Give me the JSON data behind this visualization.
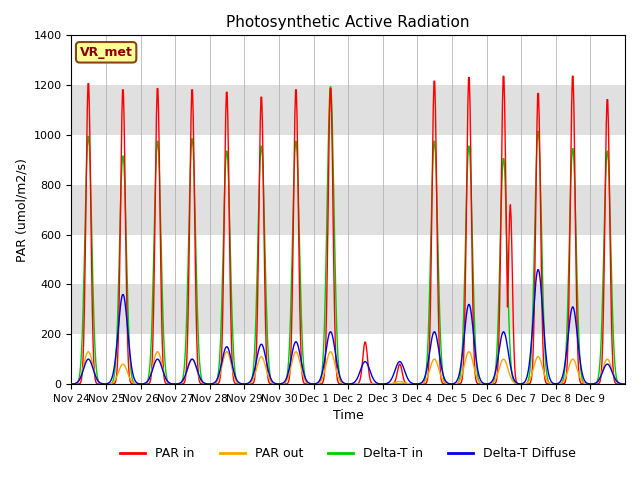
{
  "title": "Photosynthetic Active Radiation",
  "ylabel": "PAR (umol/m2/s)",
  "xlabel": "Time",
  "ylim": [
    0,
    1400
  ],
  "label_box": "VR_met",
  "xtick_labels": [
    "Nov 24",
    "Nov 25",
    "Nov 26",
    "Nov 27",
    "Nov 28",
    "Nov 29",
    "Nov 30",
    "Dec 1",
    "Dec 2",
    "Dec 3",
    "Dec 4",
    "Dec 5",
    "Dec 6",
    "Dec 7",
    "Dec 8",
    "Dec 9"
  ],
  "ytick_labels": [
    0,
    200,
    400,
    600,
    800,
    1000,
    1200,
    1400
  ],
  "colors": {
    "PAR_in": "#FF0000",
    "PAR_out": "#FFA500",
    "Delta_T_in": "#00CC00",
    "Delta_T_Diffuse": "#0000EE"
  },
  "bg_color": "#FFFFFF",
  "grid_band_color": "#E0E0E0",
  "n_days": 16,
  "spd": 48,
  "par_in_peaks": [
    1220,
    1195,
    1200,
    1195,
    1185,
    1165,
    1195,
    1200,
    170,
    80,
    1230,
    1245,
    1250,
    1180,
    1250,
    1155
  ],
  "par_out_peaks": [
    130,
    80,
    130,
    100,
    130,
    110,
    130,
    130,
    0,
    10,
    100,
    130,
    100,
    110,
    100,
    100
  ],
  "delta_t_in_peaks": [
    1000,
    920,
    980,
    990,
    940,
    960,
    980,
    1200,
    0,
    0,
    980,
    960,
    910,
    1020,
    950,
    940
  ],
  "delta_t_diff_peaks": [
    100,
    360,
    100,
    100,
    150,
    160,
    170,
    210,
    90,
    90,
    210,
    320,
    210,
    460,
    310,
    80
  ],
  "sigma_in": 0.07,
  "sigma_out": 0.13,
  "sigma_dt": 0.1,
  "sigma_diff": 0.14,
  "lw": 1.0
}
